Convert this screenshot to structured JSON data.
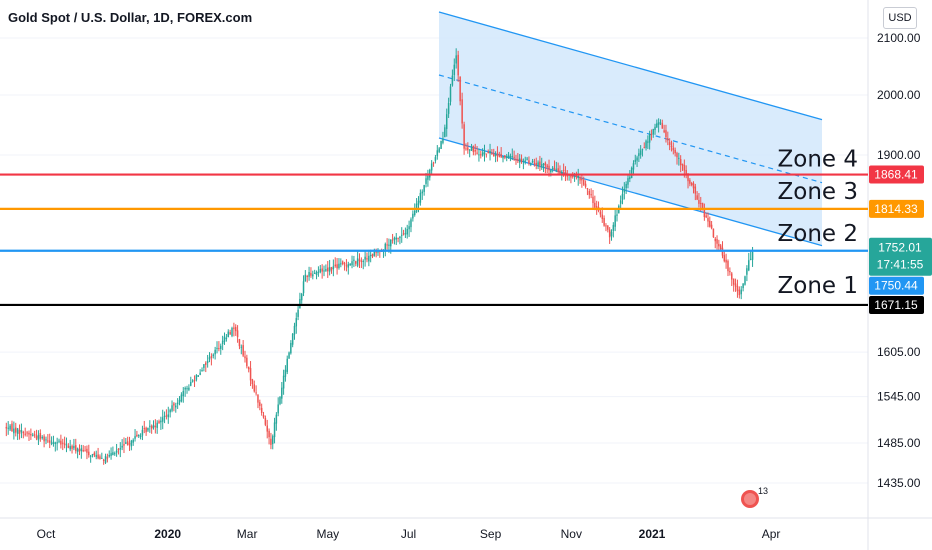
{
  "header": {
    "title": "Gold Spot / U.S. Dollar, 1D, FOREX.com"
  },
  "currency_button": "USD",
  "badge": {
    "text": "13"
  },
  "colors": {
    "up": "#26a69a",
    "down": "#ef5350",
    "channel_line": "#2196f3",
    "channel_fill": "#cfe6fb",
    "zone4": "#f23645",
    "zone3": "#ff9800",
    "zone2": "#2196f3",
    "zone1": "#000000",
    "grid": "#f0f3fa"
  },
  "chart_data": {
    "type": "candlestick",
    "instrument": "Gold Spot / U.S. Dollar",
    "interval": "1D",
    "source": "FOREX.com",
    "currency": "USD",
    "y_axis": {
      "scale": "log",
      "ticks": [
        "2100.00",
        "2000.00",
        "1900.00",
        "1605.00",
        "1545.00",
        "1485.00",
        "1435.00"
      ]
    },
    "x_axis": {
      "ticks": [
        "Oct",
        "2020",
        "Mar",
        "May",
        "Jul",
        "Sep",
        "Nov",
        "2021",
        "Apr"
      ]
    },
    "price_labels": [
      {
        "name": "zone4",
        "text": "1868.41"
      },
      {
        "name": "zone3",
        "text": "1814.33"
      },
      {
        "name": "last",
        "text": "1752.01",
        "countdown": "17:41:55"
      },
      {
        "name": "zone2",
        "text": "1750.44"
      },
      {
        "name": "zone1",
        "text": "1671.15"
      }
    ],
    "annotations": [
      "Zone 4",
      "Zone 3",
      "Zone 2",
      "Zone 1"
    ],
    "horizontal_levels": [
      1868.41,
      1814.33,
      1750.44,
      1671.15
    ],
    "last_price": 1752.01,
    "path_keypoints": [
      [
        "2019-09-01",
        1505
      ],
      [
        "2019-10-01",
        1490
      ],
      [
        "2019-11-15",
        1465
      ],
      [
        "2019-12-31",
        1520
      ],
      [
        "2020-02-20",
        1640
      ],
      [
        "2020-03-19",
        1485
      ],
      [
        "2020-04-14",
        1715
      ],
      [
        "2020-06-01",
        1740
      ],
      [
        "2020-06-30",
        1780
      ],
      [
        "2020-07-27",
        1930
      ],
      [
        "2020-08-06",
        2070
      ],
      [
        "2020-08-12",
        1910
      ],
      [
        "2020-09-30",
        1890
      ],
      [
        "2020-11-09",
        1860
      ],
      [
        "2020-11-30",
        1775
      ],
      [
        "2020-12-18",
        1885
      ],
      [
        "2021-01-06",
        1955
      ],
      [
        "2021-01-31",
        1850
      ],
      [
        "2021-02-26",
        1730
      ],
      [
        "2021-03-08",
        1685
      ],
      [
        "2021-03-18",
        1752
      ]
    ]
  }
}
